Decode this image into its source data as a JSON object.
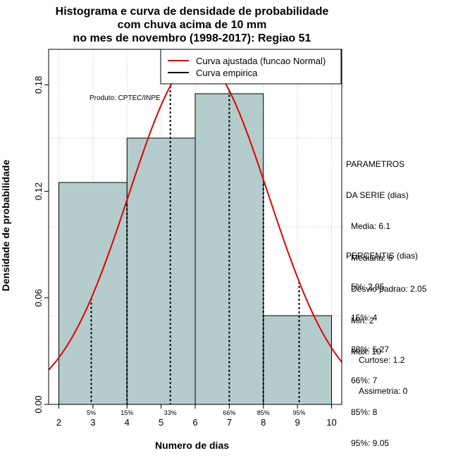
{
  "title": [
    "Histograma e curva de densidade de probabilidade",
    "com chuva acima de 10 mm",
    "no mes de novembro (1998-2017): Regiao 51"
  ],
  "chart_data": {
    "type": "bar",
    "title": "Histograma e curva de densidade de probabilidade com chuva acima de 10 mm no mes de novembro (1998-2017): Regiao 51",
    "xlabel": "Numero de dias",
    "ylabel": "Densidade de probabilidade",
    "xlim": [
      1.7,
      10.3
    ],
    "ylim": [
      0,
      0.2
    ],
    "xticks": [
      2,
      3,
      4,
      5,
      6,
      7,
      8,
      9,
      10
    ],
    "yticks": [
      0.0,
      0.06,
      0.12,
      0.18
    ],
    "ytick_labels": [
      "0.00",
      "0.06",
      "0.12",
      "0.18"
    ],
    "bins": [
      {
        "from": 2,
        "to": 4,
        "density": 0.125
      },
      {
        "from": 4,
        "to": 6,
        "density": 0.15
      },
      {
        "from": 6,
        "to": 8,
        "density": 0.175
      },
      {
        "from": 8,
        "to": 10,
        "density": 0.05
      }
    ],
    "bar_color": "#b5cccc",
    "normal_curve": {
      "name": "Curva ajustada (funcao Normal)",
      "mean": 6.1,
      "sd": 2.05,
      "color": "#e00000"
    },
    "empirical_curve": {
      "name": "Curva empirica",
      "color": "#000000"
    },
    "percentile_lines": [
      {
        "label": "5%",
        "x": 2.95
      },
      {
        "label": "15%",
        "x": 4
      },
      {
        "label": "33%",
        "x": 5.27
      },
      {
        "label": "66%",
        "x": 7
      },
      {
        "label": "85%",
        "x": 8
      },
      {
        "label": "95%",
        "x": 9.05
      }
    ],
    "grid": true,
    "legend_position": "top-right",
    "annotation": "Produto: CPTEC/INPE"
  },
  "parametros": {
    "heading": [
      "PARAMETROS",
      "DA SERIE (dias)"
    ],
    "lines": [
      "Media: 6.1",
      "Mediana: 6",
      "Desvio padrao: 2.05",
      "Min: 2",
      "Max: 10"
    ]
  },
  "percentis": {
    "heading": "PERCENTIS (dias)",
    "lines": [
      "5%: 2.95",
      "15%: 4",
      "33%: 5.27",
      "66%: 7",
      "85%: 8",
      "95%: 9.05"
    ]
  },
  "forma": {
    "lines": [
      "Curtose: 1.2",
      "Assimetria: 0"
    ]
  }
}
